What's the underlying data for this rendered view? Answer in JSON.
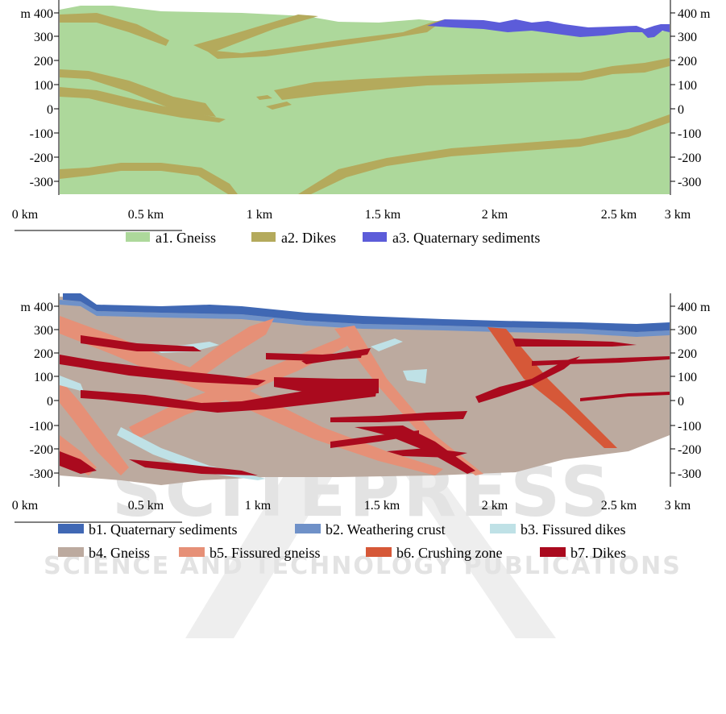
{
  "watermark": {
    "main": "SCITEPRESS",
    "sub": "SCIENCE AND TECHNOLOGY PUBLICATIONS"
  },
  "colors": {
    "gneiss_a": "#add89b",
    "dikes_a": "#b4aa5c",
    "sed_a": "#5c5cd9",
    "sed_b": "#4068b4",
    "crust_b": "#6f91c8",
    "fdikes_b": "#bfe1e6",
    "gneiss_b": "#bcaa9f",
    "fgneiss_b": "#e69077",
    "crush_b": "#d65838",
    "dikes_b": "#aa0a1e"
  },
  "panel_a": {
    "y_left": [
      "m 400",
      "300",
      "200",
      "100",
      "0",
      "-100",
      "-200",
      "-300"
    ],
    "y_right": [
      "400 m",
      "300",
      "200",
      "100",
      "0",
      "-100",
      "-200",
      "-300"
    ],
    "x_ticks": [
      "0 km",
      "0.5 km",
      "1 km",
      "1.5 km",
      "2 km",
      "2.5 km",
      "3 km"
    ],
    "legend": [
      {
        "label": "a1. Gneiss",
        "color": "#add89b"
      },
      {
        "label": "a2. Dikes",
        "color": "#b4aa5c"
      },
      {
        "label": "a3. Quaternary sediments",
        "color": "#5c5cd9"
      }
    ]
  },
  "panel_b": {
    "y_left": [
      "m 400",
      "300",
      "200",
      "100",
      "0",
      "-100",
      "-200",
      "-300"
    ],
    "y_right": [
      "400 m",
      "300",
      "200",
      "100",
      "0",
      "-100",
      "-200",
      "-300"
    ],
    "x_ticks": [
      "0 km",
      "0.5 km",
      "1 km",
      "1.5 km",
      "2 km",
      "2.5 km",
      "3 km"
    ],
    "legend_row1": [
      {
        "label": "b1. Quaternary sediments",
        "color": "#4068b4"
      },
      {
        "label": "b2. Weathering crust",
        "color": "#6f91c8"
      },
      {
        "label": "b3. Fissured dikes",
        "color": "#bfe1e6"
      }
    ],
    "legend_row2": [
      {
        "label": "b4. Gneiss",
        "color": "#bcaa9f"
      },
      {
        "label": "b5. Fissured gneiss",
        "color": "#e69077"
      },
      {
        "label": "b6. Crushing zone",
        "color": "#d65838"
      },
      {
        "label": "b7. Dikes",
        "color": "#aa0a1e"
      }
    ]
  }
}
